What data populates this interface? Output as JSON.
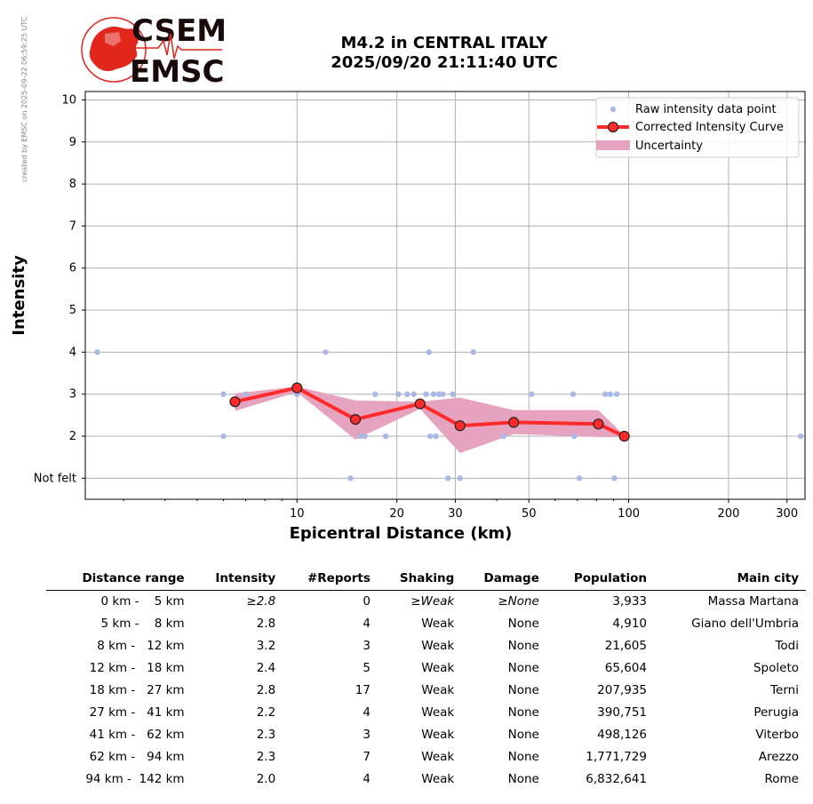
{
  "credit": "created by EMSC on 2025-09-22 06:59:25 UTC",
  "logo": {
    "top": "CSEM",
    "bottom": "EMSC",
    "color": "#e1261c"
  },
  "title": {
    "line1": "M4.2 in CENTRAL ITALY",
    "line2": "2025/09/20 21:11:40 UTC"
  },
  "chart_data": {
    "type": "scatter",
    "xlabel": "Epicentral Distance (km)",
    "ylabel": "Intensity",
    "xscale": "log",
    "xlim": [
      2.3,
      340
    ],
    "ylim": [
      0.5,
      10.2
    ],
    "x_ticks": [
      10,
      20,
      30,
      50,
      100,
      200,
      300
    ],
    "y_ticks": [
      1,
      2,
      3,
      4,
      5,
      6,
      7,
      8,
      9,
      10
    ],
    "y_tick_labels": [
      "Not felt",
      "2",
      "3",
      "4",
      "5",
      "6",
      "7",
      "8",
      "9",
      "10"
    ],
    "grid": true,
    "legend_position": "top-right",
    "legend": [
      "Raw intensity data point",
      "Corrected Intensity Curve",
      "Uncertainty"
    ],
    "colors": {
      "raw": "#aab8e6",
      "curve": "#ff2a2a",
      "band": "#e6a3bf"
    },
    "raw_points": [
      [
        2.5,
        4
      ],
      [
        6.0,
        3
      ],
      [
        6.0,
        2
      ],
      [
        7.0,
        3
      ],
      [
        10.0,
        3
      ],
      [
        12.2,
        4
      ],
      [
        14.5,
        1
      ],
      [
        15.5,
        2
      ],
      [
        16.0,
        2
      ],
      [
        17.2,
        3
      ],
      [
        18.5,
        2
      ],
      [
        20.2,
        3
      ],
      [
        21.5,
        3
      ],
      [
        22.5,
        3
      ],
      [
        24.5,
        3
      ],
      [
        25.0,
        4
      ],
      [
        25.2,
        2
      ],
      [
        25.8,
        3
      ],
      [
        26.2,
        2
      ],
      [
        26.8,
        3
      ],
      [
        27.5,
        3
      ],
      [
        28.5,
        1
      ],
      [
        29.5,
        3
      ],
      [
        31.0,
        1
      ],
      [
        34.0,
        4
      ],
      [
        42.0,
        2
      ],
      [
        51.0,
        3
      ],
      [
        68.0,
        3
      ],
      [
        68.5,
        2
      ],
      [
        71.0,
        1
      ],
      [
        85.0,
        3
      ],
      [
        88.0,
        3
      ],
      [
        90.5,
        1
      ],
      [
        92.0,
        3
      ],
      [
        330.0,
        2
      ]
    ],
    "series": [
      {
        "name": "Corrected Intensity Curve",
        "x": [
          6.5,
          10.0,
          15.0,
          23.5,
          31.0,
          45.0,
          81.0,
          97.0
        ],
        "y": [
          2.82,
          3.15,
          2.4,
          2.77,
          2.25,
          2.33,
          2.29,
          2.0
        ]
      }
    ],
    "uncertainty": {
      "x": [
        6.5,
        10.0,
        15.0,
        23.5,
        31.0,
        45.0,
        81.0,
        97.0
      ],
      "upper": [
        3.02,
        3.18,
        2.85,
        2.82,
        2.92,
        2.62,
        2.62,
        2.02
      ],
      "lower": [
        2.6,
        3.05,
        1.92,
        2.65,
        1.6,
        2.05,
        1.98,
        1.98
      ]
    }
  },
  "table": {
    "headers": [
      "Distance range",
      "Intensity",
      "#Reports",
      "Shaking",
      "Damage",
      "Population",
      "Main city"
    ],
    "rows": [
      [
        "0 km -    5 km",
        "≥2.8",
        "0",
        "≥Weak",
        "≥None",
        "3,933",
        "Massa Martana"
      ],
      [
        "5 km -    8 km",
        "2.8",
        "4",
        "Weak",
        "None",
        "4,910",
        "Giano dell'Umbria"
      ],
      [
        "8 km -   12 km",
        "3.2",
        "3",
        "Weak",
        "None",
        "21,605",
        "Todi"
      ],
      [
        "12 km -   18 km",
        "2.4",
        "5",
        "Weak",
        "None",
        "65,604",
        "Spoleto"
      ],
      [
        "18 km -   27 km",
        "2.8",
        "17",
        "Weak",
        "None",
        "207,935",
        "Terni"
      ],
      [
        "27 km -   41 km",
        "2.2",
        "4",
        "Weak",
        "None",
        "390,751",
        "Perugia"
      ],
      [
        "41 km -   62 km",
        "2.3",
        "3",
        "Weak",
        "None",
        "498,126",
        "Viterbo"
      ],
      [
        "62 km -   94 km",
        "2.3",
        "7",
        "Weak",
        "None",
        "1,771,729",
        "Arezzo"
      ],
      [
        "94 km -  142 km",
        "2.0",
        "4",
        "Weak",
        "None",
        "6,832,641",
        "Rome"
      ]
    ]
  }
}
